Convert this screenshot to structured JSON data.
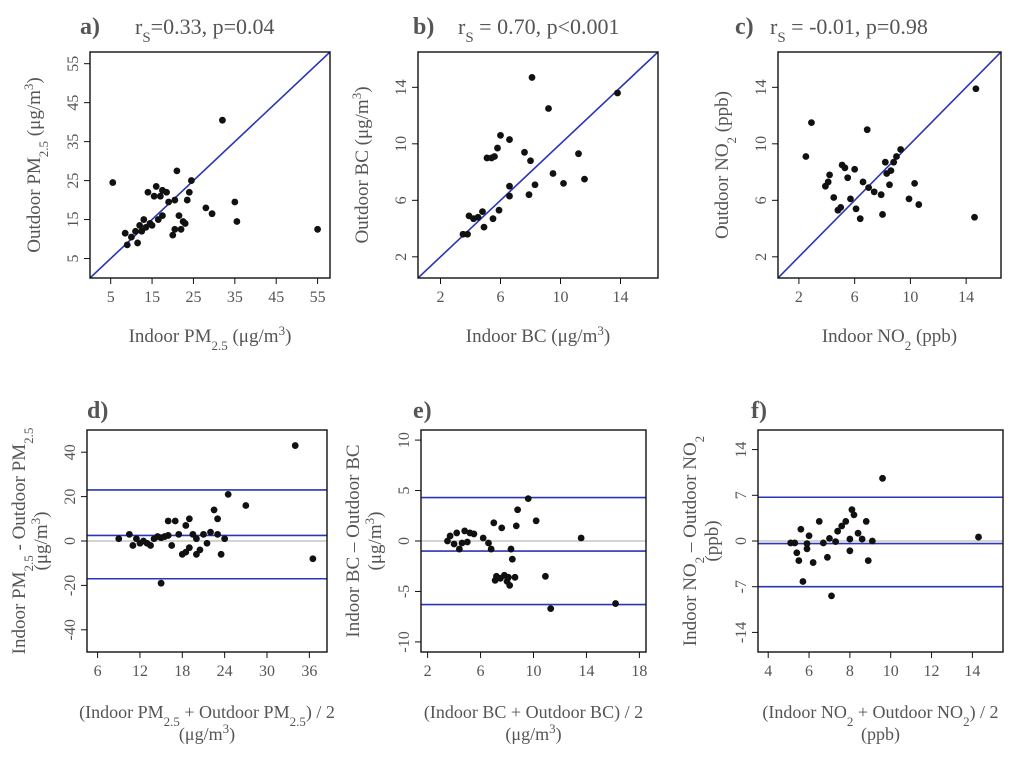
{
  "chart_data": [
    {
      "panel": "a)",
      "type": "scatter",
      "annotation": "r_s=0.33, p=0.04",
      "annotation_parts": {
        "r": "r",
        "sub": "S",
        "rest": "=0.33, p=0.04"
      },
      "xlabel": {
        "pre": "Indoor PM",
        "sub": "2.5",
        "post": " (μg/m",
        "sup": "3",
        "end": ")"
      },
      "ylabel": {
        "pre": "Outdoor PM",
        "sub": "2.5",
        "post": " (μg/m",
        "sup": "3",
        "end": ")"
      },
      "xlim": [
        0,
        58
      ],
      "ylim": [
        0,
        58
      ],
      "xticks": [
        5,
        15,
        25,
        35,
        45,
        55
      ],
      "yticks": [
        5,
        15,
        25,
        35,
        45,
        55
      ],
      "identity_line": true,
      "points": [
        [
          5.5,
          24.5
        ],
        [
          8.5,
          11.5
        ],
        [
          9,
          8.5
        ],
        [
          10,
          10.5
        ],
        [
          11,
          12
        ],
        [
          11.5,
          9
        ],
        [
          12,
          13.5
        ],
        [
          12.5,
          12
        ],
        [
          13,
          15
        ],
        [
          13.5,
          13
        ],
        [
          14,
          22
        ],
        [
          14.5,
          14
        ],
        [
          15,
          13.5
        ],
        [
          15.5,
          21
        ],
        [
          16,
          23.5
        ],
        [
          16.5,
          15
        ],
        [
          17,
          21
        ],
        [
          17.5,
          22.5
        ],
        [
          17.5,
          16
        ],
        [
          18.5,
          22
        ],
        [
          19,
          19.5
        ],
        [
          20,
          11
        ],
        [
          20.5,
          12.5
        ],
        [
          20.5,
          20
        ],
        [
          21,
          27.5
        ],
        [
          21.5,
          16
        ],
        [
          22,
          12.5
        ],
        [
          22.5,
          14.5
        ],
        [
          23,
          14
        ],
        [
          23.5,
          20
        ],
        [
          24,
          22
        ],
        [
          24.5,
          25
        ],
        [
          28,
          18
        ],
        [
          29.5,
          16.5
        ],
        [
          32,
          40.5
        ],
        [
          35,
          19.5
        ],
        [
          35.5,
          14.5
        ],
        [
          55,
          12.5
        ]
      ]
    },
    {
      "panel": "b)",
      "type": "scatter",
      "annotation": "r_s = 0.70, p<0.001",
      "annotation_parts": {
        "r": "r",
        "sub": "S",
        "rest": " = 0.70, p<0.001"
      },
      "xlabel": {
        "pre": "Indoor BC (μg/m",
        "sub": "",
        "post": "",
        "sup": "3",
        "end": ")"
      },
      "ylabel": {
        "pre": "Outdoor BC (μg/m",
        "sub": "",
        "post": "",
        "sup": "3",
        "end": ")"
      },
      "xlim": [
        0.5,
        16.5
      ],
      "ylim": [
        0.5,
        16.5
      ],
      "xticks": [
        2,
        6,
        10,
        14
      ],
      "yticks": [
        2,
        6,
        10,
        14
      ],
      "identity_line": true,
      "points": [
        [
          3.5,
          3.6
        ],
        [
          3.8,
          3.6
        ],
        [
          3.9,
          4.9
        ],
        [
          4.2,
          4.7
        ],
        [
          4.5,
          4.8
        ],
        [
          4.8,
          5.2
        ],
        [
          4.9,
          4.1
        ],
        [
          5.1,
          9
        ],
        [
          5.4,
          9
        ],
        [
          5.6,
          9.1
        ],
        [
          5.5,
          4.7
        ],
        [
          5.8,
          9.7
        ],
        [
          5.9,
          5.3
        ],
        [
          6,
          10.6
        ],
        [
          6.6,
          6.3
        ],
        [
          6.6,
          7
        ],
        [
          6.6,
          10.3
        ],
        [
          7.6,
          9.4
        ],
        [
          7.9,
          6.4
        ],
        [
          8,
          8.8
        ],
        [
          8.1,
          14.7
        ],
        [
          8.3,
          7.1
        ],
        [
          9.2,
          12.5
        ],
        [
          9.5,
          7.9
        ],
        [
          10.2,
          7.2
        ],
        [
          11.2,
          9.3
        ],
        [
          11.6,
          7.5
        ],
        [
          13.8,
          13.6
        ]
      ]
    },
    {
      "panel": "c)",
      "type": "scatter",
      "annotation": "r_s = -0.01, p=0.98",
      "annotation_parts": {
        "r": "r",
        "sub": "S",
        "rest": " = -0.01, p=0.98"
      },
      "xlabel": {
        "pre": "Indoor NO",
        "sub": "2",
        "post": " (ppb)",
        "sup": "",
        "end": ""
      },
      "ylabel": {
        "pre": "Outdoor NO",
        "sub": "2",
        "post": " (ppb)",
        "sup": "",
        "end": ""
      },
      "xlim": [
        0.5,
        16.5
      ],
      "ylim": [
        0.5,
        16.5
      ],
      "xticks": [
        2,
        6,
        10,
        14
      ],
      "yticks": [
        2,
        6,
        10,
        14
      ],
      "identity_line": true,
      "points": [
        [
          2.5,
          9.1
        ],
        [
          2.9,
          11.5
        ],
        [
          3.9,
          7
        ],
        [
          4.1,
          7.3
        ],
        [
          4.2,
          7.8
        ],
        [
          4.5,
          6.2
        ],
        [
          4.8,
          5.3
        ],
        [
          5,
          5.5
        ],
        [
          5.1,
          8.5
        ],
        [
          5.3,
          8.3
        ],
        [
          5.5,
          7.6
        ],
        [
          5.7,
          6.1
        ],
        [
          6,
          8.2
        ],
        [
          6.1,
          5.4
        ],
        [
          6.4,
          4.7
        ],
        [
          6.6,
          7.3
        ],
        [
          6.9,
          11
        ],
        [
          7,
          6.9
        ],
        [
          7.4,
          6.6
        ],
        [
          7.9,
          6.4
        ],
        [
          8,
          5
        ],
        [
          8.2,
          8.7
        ],
        [
          8.3,
          7.9
        ],
        [
          8.5,
          7.1
        ],
        [
          8.6,
          8.1
        ],
        [
          8.8,
          8.7
        ],
        [
          9,
          9.1
        ],
        [
          9.3,
          9.6
        ],
        [
          9.9,
          6.1
        ],
        [
          10.3,
          7.2
        ],
        [
          10.6,
          5.7
        ],
        [
          14.7,
          13.9
        ],
        [
          14.6,
          4.8
        ]
      ]
    },
    {
      "panel": "d)",
      "type": "scatter",
      "xlabel_line1": {
        "pre": "(Indoor PM",
        "sub": "2.5",
        "mid": " + Outdoor PM",
        "sub2": "2.5",
        "post": ") / 2"
      },
      "xlabel_line2": {
        "pre": "(μg/m",
        "sup": "3",
        "end": ")"
      },
      "ylabel_line1": {
        "pre": "Indoor PM",
        "sub": "2.5",
        "mid": " - Outdoor PM",
        "sub2": "2.5"
      },
      "ylabel_line2": {
        "pre": "(μg/m",
        "sup": "3",
        "end": ")"
      },
      "xlim": [
        4.5,
        38.5
      ],
      "ylim": [
        -50,
        50
      ],
      "xticks": [
        6,
        12,
        18,
        24,
        30,
        36
      ],
      "yticks": [
        -40,
        -20,
        0,
        20,
        40
      ],
      "zero_line": 0,
      "mean_line": 2.5,
      "limits_of_agreement": [
        -17,
        23
      ],
      "points": [
        [
          9,
          1
        ],
        [
          10.5,
          3
        ],
        [
          11,
          -2
        ],
        [
          11.5,
          1
        ],
        [
          12,
          -1
        ],
        [
          12.5,
          0
        ],
        [
          13,
          -1
        ],
        [
          13.5,
          -2
        ],
        [
          14,
          1
        ],
        [
          14.5,
          2
        ],
        [
          15,
          -19
        ],
        [
          15,
          1.5
        ],
        [
          15.5,
          2
        ],
        [
          16,
          9
        ],
        [
          16,
          2.5
        ],
        [
          16.5,
          -2
        ],
        [
          17,
          9
        ],
        [
          17.5,
          3
        ],
        [
          18,
          -6
        ],
        [
          18.5,
          -5
        ],
        [
          18.5,
          7
        ],
        [
          19,
          10
        ],
        [
          19,
          -3
        ],
        [
          19.5,
          3
        ],
        [
          20,
          -6
        ],
        [
          20,
          1
        ],
        [
          20.5,
          -4
        ],
        [
          21,
          3
        ],
        [
          21.5,
          -1
        ],
        [
          22,
          4
        ],
        [
          22.5,
          14
        ],
        [
          23,
          10
        ],
        [
          23,
          3
        ],
        [
          23.5,
          -6
        ],
        [
          24,
          1
        ],
        [
          24.5,
          21
        ],
        [
          27,
          16
        ],
        [
          34,
          43
        ],
        [
          36.5,
          -8
        ]
      ]
    },
    {
      "panel": "e)",
      "type": "scatter",
      "xlabel_line1": {
        "pre": "(Indoor BC + Outdoor BC) / 2",
        "sub": "",
        "mid": "",
        "sub2": "",
        "post": ""
      },
      "xlabel_line2": {
        "pre": "(μg/m",
        "sup": "3",
        "end": ")"
      },
      "ylabel_line1": {
        "pre": "Indoor BC – Outdoor BC",
        "sub": "",
        "mid": "",
        "sub2": ""
      },
      "ylabel_line2": {
        "pre": "(μg/m",
        "sup": "3",
        "end": ")"
      },
      "xlim": [
        1.5,
        18.5
      ],
      "ylim": [
        -11,
        11
      ],
      "xticks": [
        2,
        6,
        10,
        14,
        18
      ],
      "yticks": [
        -10,
        -5,
        0,
        5,
        10
      ],
      "zero_line": 0,
      "mean_line": -1,
      "limits_of_agreement": [
        -6.3,
        4.3
      ],
      "points": [
        [
          3.5,
          0
        ],
        [
          3.7,
          0.5
        ],
        [
          4,
          -0.3
        ],
        [
          4.2,
          0.8
        ],
        [
          4.4,
          -0.8
        ],
        [
          4.6,
          -0.2
        ],
        [
          4.8,
          1
        ],
        [
          5,
          -0.1
        ],
        [
          5.2,
          0.8
        ],
        [
          5.5,
          0.7
        ],
        [
          6.2,
          0.3
        ],
        [
          6.6,
          -0.2
        ],
        [
          6.8,
          -0.8
        ],
        [
          7,
          1.8
        ],
        [
          7.1,
          -3.9
        ],
        [
          7.2,
          -3.5
        ],
        [
          7.5,
          -3.7
        ],
        [
          7.6,
          1.3
        ],
        [
          7.8,
          -3.4
        ],
        [
          8,
          -4
        ],
        [
          8.1,
          -3.6
        ],
        [
          8.2,
          -4.4
        ],
        [
          8.3,
          -0.8
        ],
        [
          8.4,
          -1.8
        ],
        [
          8.6,
          -3.6
        ],
        [
          8.7,
          1.5
        ],
        [
          8.8,
          3.1
        ],
        [
          9.6,
          4.2
        ],
        [
          10.2,
          2
        ],
        [
          10.9,
          -3.5
        ],
        [
          11.3,
          -6.7
        ],
        [
          13.6,
          0.3
        ],
        [
          16.2,
          -6.2
        ]
      ]
    },
    {
      "panel": "f)",
      "type": "scatter",
      "xlabel_line1": {
        "pre": "(Indoor NO",
        "sub": "2",
        "mid": " + Outdoor NO",
        "sub2": "2",
        "post": ") / 2"
      },
      "xlabel_line2": {
        "pre": "(ppb)",
        "sup": "",
        "end": ""
      },
      "ylabel_line1": {
        "pre": "Indoor NO",
        "sub": "2",
        "mid": " – Outdoor NO",
        "sub2": "2"
      },
      "ylabel_line2": {
        "pre": "(ppb)",
        "sup": "",
        "end": ""
      },
      "xlim": [
        3.5,
        15.5
      ],
      "ylim": [
        -17,
        17
      ],
      "xticks": [
        4,
        6,
        8,
        10,
        12,
        14
      ],
      "yticks": [
        -14,
        -7,
        0,
        7,
        14
      ],
      "zero_line": 0,
      "mean_line": -0.4,
      "limits_of_agreement": [
        -7,
        6.7
      ],
      "points": [
        [
          5.1,
          -0.3
        ],
        [
          5.3,
          -0.3
        ],
        [
          5.4,
          -1.8
        ],
        [
          5.5,
          -3
        ],
        [
          5.6,
          1.8
        ],
        [
          5.7,
          -6.2
        ],
        [
          5.9,
          -1.2
        ],
        [
          5.9,
          -0.4
        ],
        [
          6,
          0.8
        ],
        [
          6.2,
          -3.3
        ],
        [
          6.5,
          3
        ],
        [
          6.7,
          -0.3
        ],
        [
          6.9,
          -2.5
        ],
        [
          7,
          0.4
        ],
        [
          7.1,
          -8.4
        ],
        [
          7.3,
          -0.1
        ],
        [
          7.4,
          1.5
        ],
        [
          7.6,
          2.3
        ],
        [
          7.8,
          3
        ],
        [
          8,
          -1.5
        ],
        [
          8,
          0.3
        ],
        [
          8.1,
          4.8
        ],
        [
          8.2,
          4
        ],
        [
          8.4,
          1.2
        ],
        [
          8.6,
          0.3
        ],
        [
          8.8,
          3
        ],
        [
          8.9,
          -3
        ],
        [
          9.1,
          0
        ],
        [
          9.6,
          9.6
        ],
        [
          14.3,
          0.6
        ]
      ]
    }
  ]
}
